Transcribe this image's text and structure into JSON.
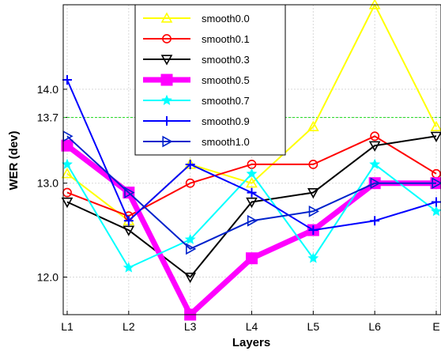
{
  "chart_data": {
    "type": "line",
    "xlabel": "Layers",
    "ylabel": "WER (dev)",
    "categories": [
      "L1",
      "L2",
      "L3",
      "L4",
      "L5",
      "L6",
      "E"
    ],
    "yticks": [
      "12.0",
      "13.0",
      "13.7",
      "14.0"
    ],
    "ylim": [
      11.6,
      14.9
    ],
    "grid": true,
    "legend_position": "top-center",
    "reference_line": {
      "y": 13.7,
      "color": "#33dd33",
      "style": "dashed"
    },
    "series": [
      {
        "name": "smooth0.0",
        "color": "#ffff00",
        "marker": "triangle-up",
        "values": [
          13.1,
          12.6,
          13.2,
          13.0,
          13.6,
          14.9,
          13.6
        ]
      },
      {
        "name": "smooth0.1",
        "color": "#ff0000",
        "marker": "circle",
        "values": [
          12.9,
          12.65,
          13.0,
          13.2,
          13.2,
          13.5,
          13.1
        ]
      },
      {
        "name": "smooth0.3",
        "color": "#000000",
        "marker": "triangle-down",
        "values": [
          12.8,
          12.5,
          12.0,
          12.8,
          12.9,
          13.4,
          13.5
        ]
      },
      {
        "name": "smooth0.5",
        "color": "#ff00ff",
        "marker": "square",
        "values": [
          13.4,
          12.9,
          11.6,
          12.2,
          12.5,
          13.0,
          13.0
        ]
      },
      {
        "name": "smooth0.7",
        "color": "#00ffff",
        "marker": "star",
        "values": [
          13.2,
          12.1,
          12.4,
          13.1,
          12.2,
          13.2,
          12.7
        ]
      },
      {
        "name": "smooth0.9",
        "color": "#0000ff",
        "marker": "plus",
        "values": [
          14.1,
          12.6,
          13.2,
          12.9,
          12.5,
          12.6,
          12.8
        ]
      },
      {
        "name": "smooth1.0",
        "color": "#0022cc",
        "marker": "triangle-right",
        "values": [
          13.5,
          12.9,
          12.3,
          12.6,
          12.7,
          13.0,
          13.0
        ]
      }
    ]
  }
}
